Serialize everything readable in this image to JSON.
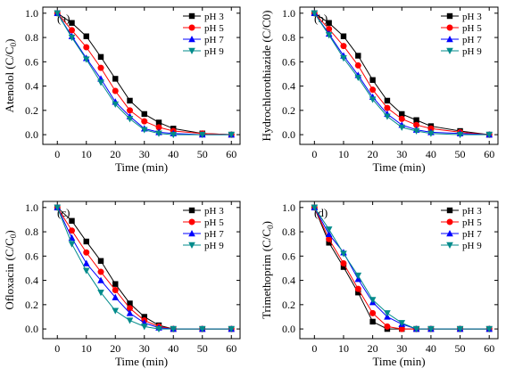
{
  "chart_data": [
    {
      "type": "line",
      "panel_label": "(a)",
      "xlabel": "Time (min)",
      "ylabel": "Atenolol (C/C",
      "ylabel_sub": "0",
      "ylabel_end": ")",
      "xlim": [
        -5,
        63
      ],
      "ylim": [
        -0.08,
        1.05
      ],
      "xticks": [
        0,
        10,
        20,
        30,
        40,
        50,
        60
      ],
      "yticks": [
        0.0,
        0.2,
        0.4,
        0.6,
        0.8,
        1.0
      ],
      "legend_position": "top-right",
      "x": [
        0,
        5,
        10,
        15,
        20,
        25,
        30,
        35,
        40,
        50,
        60
      ],
      "series": [
        {
          "name": "pH 3",
          "color": "#000000",
          "marker": "square",
          "values": [
            1.0,
            0.92,
            0.81,
            0.64,
            0.46,
            0.28,
            0.17,
            0.1,
            0.05,
            0.01,
            0.0
          ]
        },
        {
          "name": "pH 5",
          "color": "#ff0000",
          "marker": "circle",
          "values": [
            1.0,
            0.86,
            0.72,
            0.55,
            0.36,
            0.2,
            0.11,
            0.06,
            0.03,
            0.01,
            0.0
          ]
        },
        {
          "name": "pH 7",
          "color": "#0000ff",
          "marker": "triangle",
          "values": [
            1.0,
            0.81,
            0.63,
            0.46,
            0.27,
            0.15,
            0.05,
            0.02,
            0.01,
            0.0,
            0.0
          ]
        },
        {
          "name": "pH 9",
          "color": "#008b8b",
          "marker": "tri-down",
          "values": [
            1.0,
            0.8,
            0.62,
            0.43,
            0.25,
            0.13,
            0.04,
            0.01,
            0.0,
            0.0,
            0.0
          ]
        }
      ]
    },
    {
      "type": "line",
      "panel_label": "(b)",
      "xlabel": "Time (min)",
      "ylabel": "Hydrochlorothiazide (C/C0)",
      "ylabel_sub": "",
      "ylabel_end": "",
      "xlim": [
        -5,
        63
      ],
      "ylim": [
        -0.08,
        1.05
      ],
      "xticks": [
        0,
        10,
        20,
        30,
        40,
        50,
        60
      ],
      "yticks": [
        0.0,
        0.2,
        0.4,
        0.6,
        0.8,
        1.0
      ],
      "legend_position": "top-right",
      "x": [
        0,
        5,
        10,
        15,
        20,
        25,
        30,
        35,
        40,
        50,
        60
      ],
      "series": [
        {
          "name": "pH 3",
          "color": "#000000",
          "marker": "square",
          "values": [
            1.0,
            0.92,
            0.81,
            0.65,
            0.45,
            0.28,
            0.17,
            0.12,
            0.07,
            0.03,
            0.0
          ]
        },
        {
          "name": "pH 5",
          "color": "#ff0000",
          "marker": "circle",
          "values": [
            1.0,
            0.87,
            0.73,
            0.57,
            0.37,
            0.22,
            0.13,
            0.08,
            0.05,
            0.02,
            0.0
          ]
        },
        {
          "name": "pH 7",
          "color": "#0000ff",
          "marker": "triangle",
          "values": [
            1.0,
            0.83,
            0.65,
            0.49,
            0.31,
            0.17,
            0.08,
            0.04,
            0.02,
            0.01,
            0.0
          ]
        },
        {
          "name": "pH 9",
          "color": "#008b8b",
          "marker": "tri-down",
          "values": [
            1.0,
            0.82,
            0.63,
            0.47,
            0.29,
            0.15,
            0.06,
            0.03,
            0.01,
            0.0,
            0.0
          ]
        }
      ]
    },
    {
      "type": "line",
      "panel_label": "(c)",
      "xlabel": "Time (min)",
      "ylabel": "Ofloxacin (C/C",
      "ylabel_sub": "0",
      "ylabel_end": ")",
      "xlim": [
        -5,
        63
      ],
      "ylim": [
        -0.08,
        1.05
      ],
      "xticks": [
        0,
        10,
        20,
        30,
        40,
        50,
        60
      ],
      "yticks": [
        0.0,
        0.2,
        0.4,
        0.6,
        0.8,
        1.0
      ],
      "legend_position": "top-right",
      "x": [
        0,
        5,
        10,
        15,
        20,
        25,
        30,
        35,
        40,
        50,
        60
      ],
      "series": [
        {
          "name": "pH 3",
          "color": "#000000",
          "marker": "square",
          "values": [
            1.0,
            0.89,
            0.72,
            0.56,
            0.37,
            0.21,
            0.1,
            0.03,
            0.0,
            0.0,
            0.0
          ]
        },
        {
          "name": "pH 5",
          "color": "#ff0000",
          "marker": "circle",
          "values": [
            1.0,
            0.81,
            0.63,
            0.47,
            0.32,
            0.17,
            0.07,
            0.02,
            0.0,
            0.0,
            0.0
          ]
        },
        {
          "name": "pH 7",
          "color": "#0000ff",
          "marker": "triangle",
          "values": [
            1.0,
            0.75,
            0.54,
            0.4,
            0.26,
            0.13,
            0.05,
            0.01,
            0.0,
            0.0,
            0.0
          ]
        },
        {
          "name": "pH 9",
          "color": "#008b8b",
          "marker": "tri-down",
          "values": [
            1.0,
            0.7,
            0.48,
            0.3,
            0.15,
            0.07,
            0.02,
            0.0,
            0.0,
            0.0,
            0.0
          ]
        }
      ]
    },
    {
      "type": "line",
      "panel_label": "(d)",
      "xlabel": "Time (min)",
      "ylabel": "Trimethoprim (C/C",
      "ylabel_sub": "0",
      "ylabel_end": ")",
      "xlim": [
        -5,
        63
      ],
      "ylim": [
        -0.08,
        1.05
      ],
      "xticks": [
        0,
        10,
        20,
        30,
        40,
        50,
        60
      ],
      "yticks": [
        0.0,
        0.2,
        0.4,
        0.6,
        0.8,
        1.0
      ],
      "legend_position": "top-right",
      "x": [
        0,
        5,
        10,
        15,
        20,
        25,
        30,
        35,
        40,
        50,
        60
      ],
      "series": [
        {
          "name": "pH 3",
          "color": "#000000",
          "marker": "square",
          "values": [
            1.0,
            0.71,
            0.51,
            0.3,
            0.06,
            0.0,
            0.0,
            0.0,
            0.0,
            0.0,
            0.0
          ]
        },
        {
          "name": "pH 5",
          "color": "#ff0000",
          "marker": "circle",
          "values": [
            1.0,
            0.74,
            0.54,
            0.33,
            0.13,
            0.02,
            0.0,
            0.0,
            0.0,
            0.0,
            0.0
          ]
        },
        {
          "name": "pH 7",
          "color": "#0000ff",
          "marker": "triangle",
          "values": [
            1.0,
            0.78,
            0.63,
            0.41,
            0.22,
            0.1,
            0.04,
            0.0,
            0.0,
            0.0,
            0.0
          ]
        },
        {
          "name": "pH 9",
          "color": "#008b8b",
          "marker": "tri-down",
          "values": [
            1.0,
            0.82,
            0.62,
            0.44,
            0.24,
            0.13,
            0.05,
            0.0,
            0.0,
            0.0,
            0.0
          ]
        }
      ]
    }
  ]
}
